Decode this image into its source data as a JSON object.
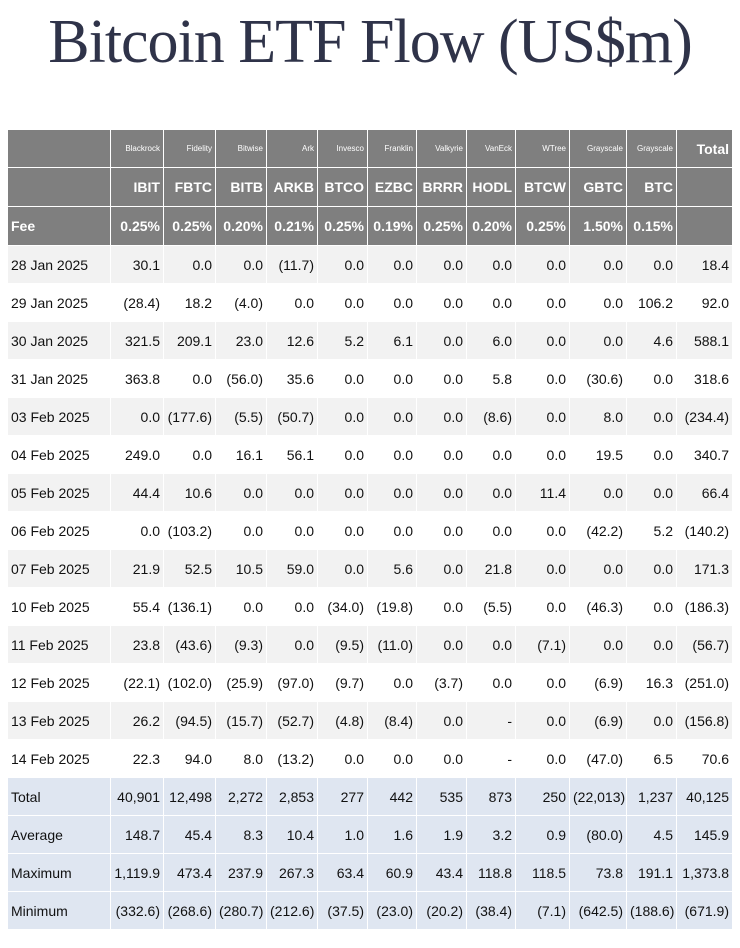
{
  "title": "Bitcoin ETF Flow (US$m)",
  "colors": {
    "header_bg": "#7f7f7f",
    "stripe": "#f2f2f2",
    "summary_bg": "#dfe6f1",
    "negative": "#cc0000",
    "title": "#2f3349"
  },
  "header": {
    "issuers": [
      "",
      "Blackrock",
      "Fidelity",
      "Bitwise",
      "Ark",
      "Invesco",
      "Franklin",
      "Valkyrie",
      "VanEck",
      "WTree",
      "Grayscale",
      "Grayscale",
      "Total"
    ],
    "tickers": [
      "",
      "IBIT",
      "FBTC",
      "BITB",
      "ARKB",
      "BTCO",
      "EZBC",
      "BRRR",
      "HODL",
      "BTCW",
      "GBTC",
      "BTC",
      ""
    ],
    "fees": [
      "Fee",
      "0.25%",
      "0.25%",
      "0.20%",
      "0.21%",
      "0.25%",
      "0.19%",
      "0.25%",
      "0.20%",
      "0.25%",
      "1.50%",
      "0.15%",
      ""
    ]
  },
  "rows": [
    [
      "28 Jan 2025",
      "30.1",
      "0.0",
      "0.0",
      "(11.7)",
      "0.0",
      "0.0",
      "0.0",
      "0.0",
      "0.0",
      "0.0",
      "0.0",
      "18.4"
    ],
    [
      "29 Jan 2025",
      "(28.4)",
      "18.2",
      "(4.0)",
      "0.0",
      "0.0",
      "0.0",
      "0.0",
      "0.0",
      "0.0",
      "0.0",
      "106.2",
      "92.0"
    ],
    [
      "30 Jan 2025",
      "321.5",
      "209.1",
      "23.0",
      "12.6",
      "5.2",
      "6.1",
      "0.0",
      "6.0",
      "0.0",
      "0.0",
      "4.6",
      "588.1"
    ],
    [
      "31 Jan 2025",
      "363.8",
      "0.0",
      "(56.0)",
      "35.6",
      "0.0",
      "0.0",
      "0.0",
      "5.8",
      "0.0",
      "(30.6)",
      "0.0",
      "318.6"
    ],
    [
      "03 Feb 2025",
      "0.0",
      "(177.6)",
      "(5.5)",
      "(50.7)",
      "0.0",
      "0.0",
      "0.0",
      "(8.6)",
      "0.0",
      "8.0",
      "0.0",
      "(234.4)"
    ],
    [
      "04 Feb 2025",
      "249.0",
      "0.0",
      "16.1",
      "56.1",
      "0.0",
      "0.0",
      "0.0",
      "0.0",
      "0.0",
      "19.5",
      "0.0",
      "340.7"
    ],
    [
      "05 Feb 2025",
      "44.4",
      "10.6",
      "0.0",
      "0.0",
      "0.0",
      "0.0",
      "0.0",
      "0.0",
      "11.4",
      "0.0",
      "0.0",
      "66.4"
    ],
    [
      "06 Feb 2025",
      "0.0",
      "(103.2)",
      "0.0",
      "0.0",
      "0.0",
      "0.0",
      "0.0",
      "0.0",
      "0.0",
      "(42.2)",
      "5.2",
      "(140.2)"
    ],
    [
      "07 Feb 2025",
      "21.9",
      "52.5",
      "10.5",
      "59.0",
      "0.0",
      "5.6",
      "0.0",
      "21.8",
      "0.0",
      "0.0",
      "0.0",
      "171.3"
    ],
    [
      "10 Feb 2025",
      "55.4",
      "(136.1)",
      "0.0",
      "0.0",
      "(34.0)",
      "(19.8)",
      "0.0",
      "(5.5)",
      "0.0",
      "(46.3)",
      "0.0",
      "(186.3)"
    ],
    [
      "11 Feb 2025",
      "23.8",
      "(43.6)",
      "(9.3)",
      "0.0",
      "(9.5)",
      "(11.0)",
      "0.0",
      "0.0",
      "(7.1)",
      "0.0",
      "0.0",
      "(56.7)"
    ],
    [
      "12 Feb 2025",
      "(22.1)",
      "(102.0)",
      "(25.9)",
      "(97.0)",
      "(9.7)",
      "0.0",
      "(3.7)",
      "0.0",
      "0.0",
      "(6.9)",
      "16.3",
      "(251.0)"
    ],
    [
      "13 Feb 2025",
      "26.2",
      "(94.5)",
      "(15.7)",
      "(52.7)",
      "(4.8)",
      "(8.4)",
      "0.0",
      "-",
      "0.0",
      "(6.9)",
      "0.0",
      "(156.8)"
    ],
    [
      "14 Feb 2025",
      "22.3",
      "94.0",
      "8.0",
      "(13.2)",
      "0.0",
      "0.0",
      "0.0",
      "-",
      "0.0",
      "(47.0)",
      "6.5",
      "70.6"
    ]
  ],
  "summary": [
    [
      "Total",
      "40,901",
      "12,498",
      "2,272",
      "2,853",
      "277",
      "442",
      "535",
      "873",
      "250",
      "(22,013)",
      "1,237",
      "40,125"
    ],
    [
      "Average",
      "148.7",
      "45.4",
      "8.3",
      "10.4",
      "1.0",
      "1.6",
      "1.9",
      "3.2",
      "0.9",
      "(80.0)",
      "4.5",
      "145.9"
    ],
    [
      "Maximum",
      "1,119.9",
      "473.4",
      "237.9",
      "267.3",
      "63.4",
      "60.9",
      "43.4",
      "118.8",
      "118.5",
      "73.8",
      "191.1",
      "1,373.8"
    ],
    [
      "Minimum",
      "(332.6)",
      "(268.6)",
      "(280.7)",
      "(212.6)",
      "(37.5)",
      "(23.0)",
      "(20.2)",
      "(38.4)",
      "(7.1)",
      "(642.5)",
      "(188.6)",
      "(671.9)"
    ]
  ]
}
